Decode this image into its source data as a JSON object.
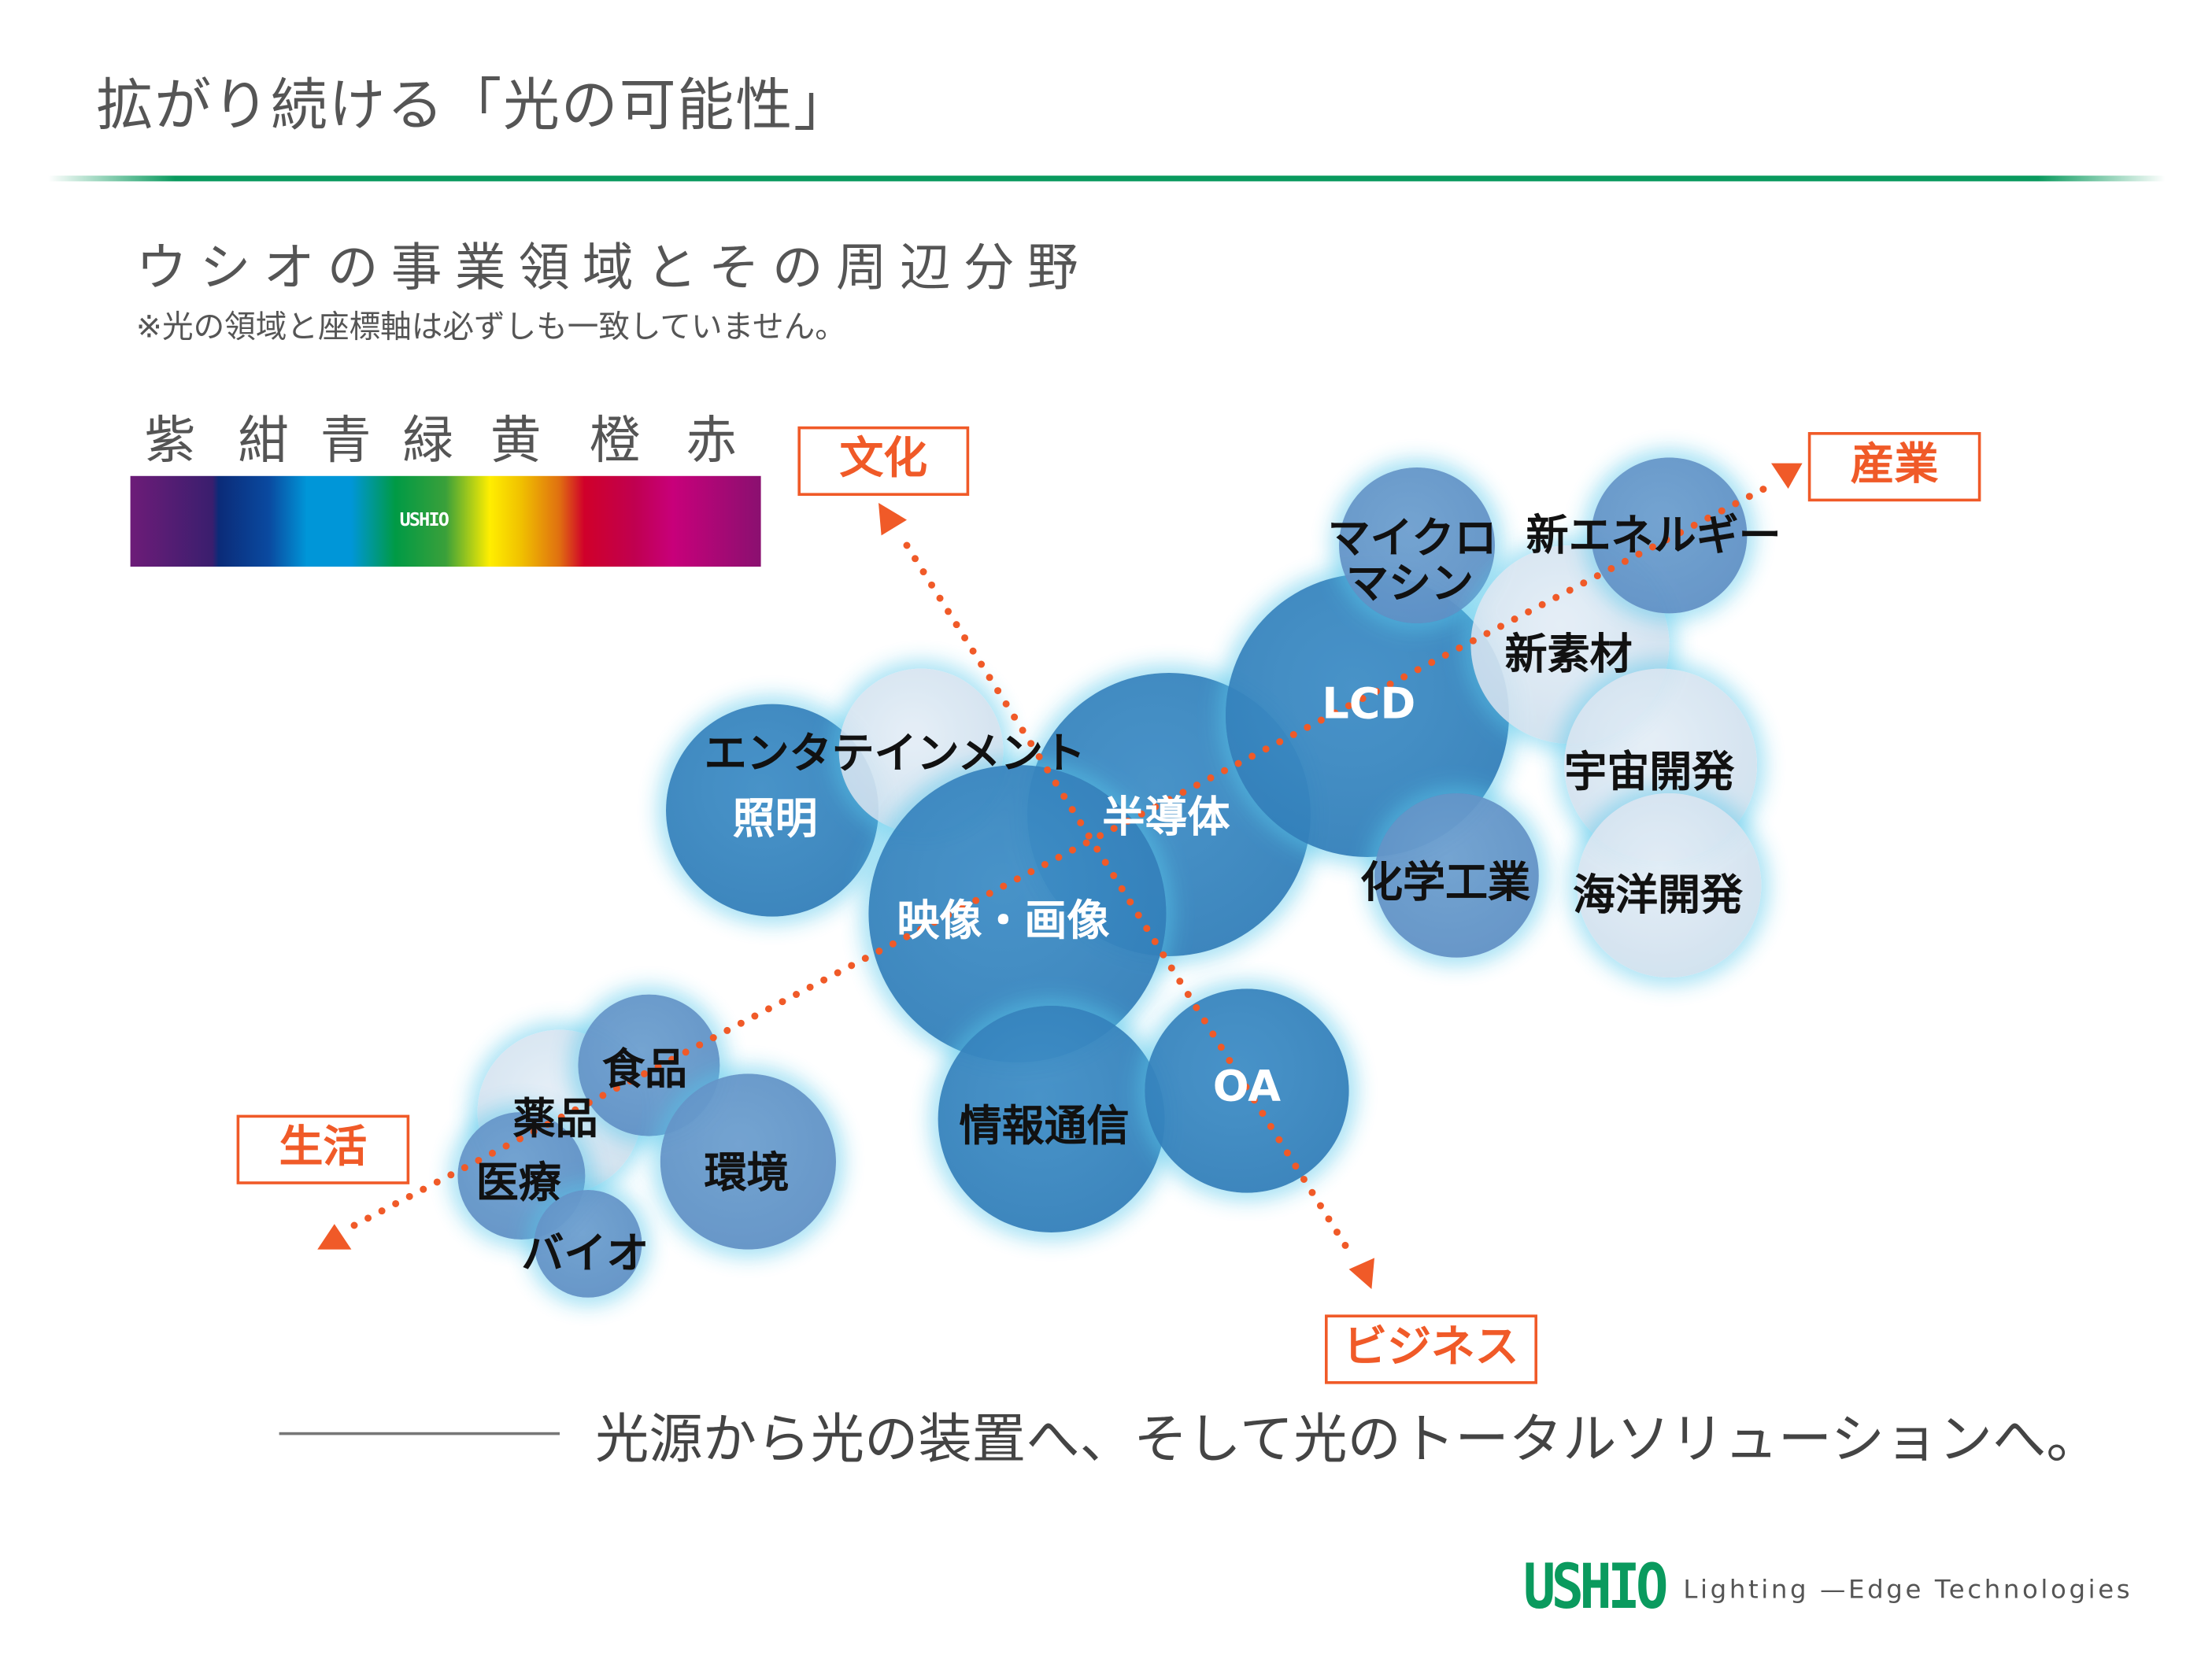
{
  "title": "拡がり続ける「光の可能性」",
  "subtitle": "ウシオの事業領域とその周辺分野",
  "note": "※光の領域と座標軸は必ずしも一致していません。",
  "spectrum": {
    "colors": [
      "紫",
      "紺",
      "青",
      "緑",
      "黄",
      "橙",
      "赤"
    ],
    "logo": "USHIO"
  },
  "axes": {
    "culture": "文化",
    "industry": "産業",
    "life": "生活",
    "business": "ビジネス",
    "color": "#f05a28"
  },
  "fields": {
    "lighting": "照明",
    "entertainment": "エンタテインメント",
    "semiconductor": "半導体",
    "imaging": "映像・画像",
    "lcd": "LCD",
    "micromachine_1": "マイクロ",
    "micromachine_2": "マシン",
    "new_energy": "新エネルギー",
    "new_materials": "新素材",
    "space": "宇宙開発",
    "ocean": "海洋開発",
    "chemical": "化学工業",
    "ict": "情報通信",
    "oa": "OA",
    "food": "食品",
    "medicine": "薬品",
    "medical": "医療",
    "environment": "環境",
    "bio": "バイオ"
  },
  "tagline": "光源から光の装置へ、そして光のトータルソリューションへ。",
  "footer": {
    "brand": "USHIO",
    "slogan": "Lighting —Edge Technologies",
    "brand_color": "#0a9a5e"
  }
}
